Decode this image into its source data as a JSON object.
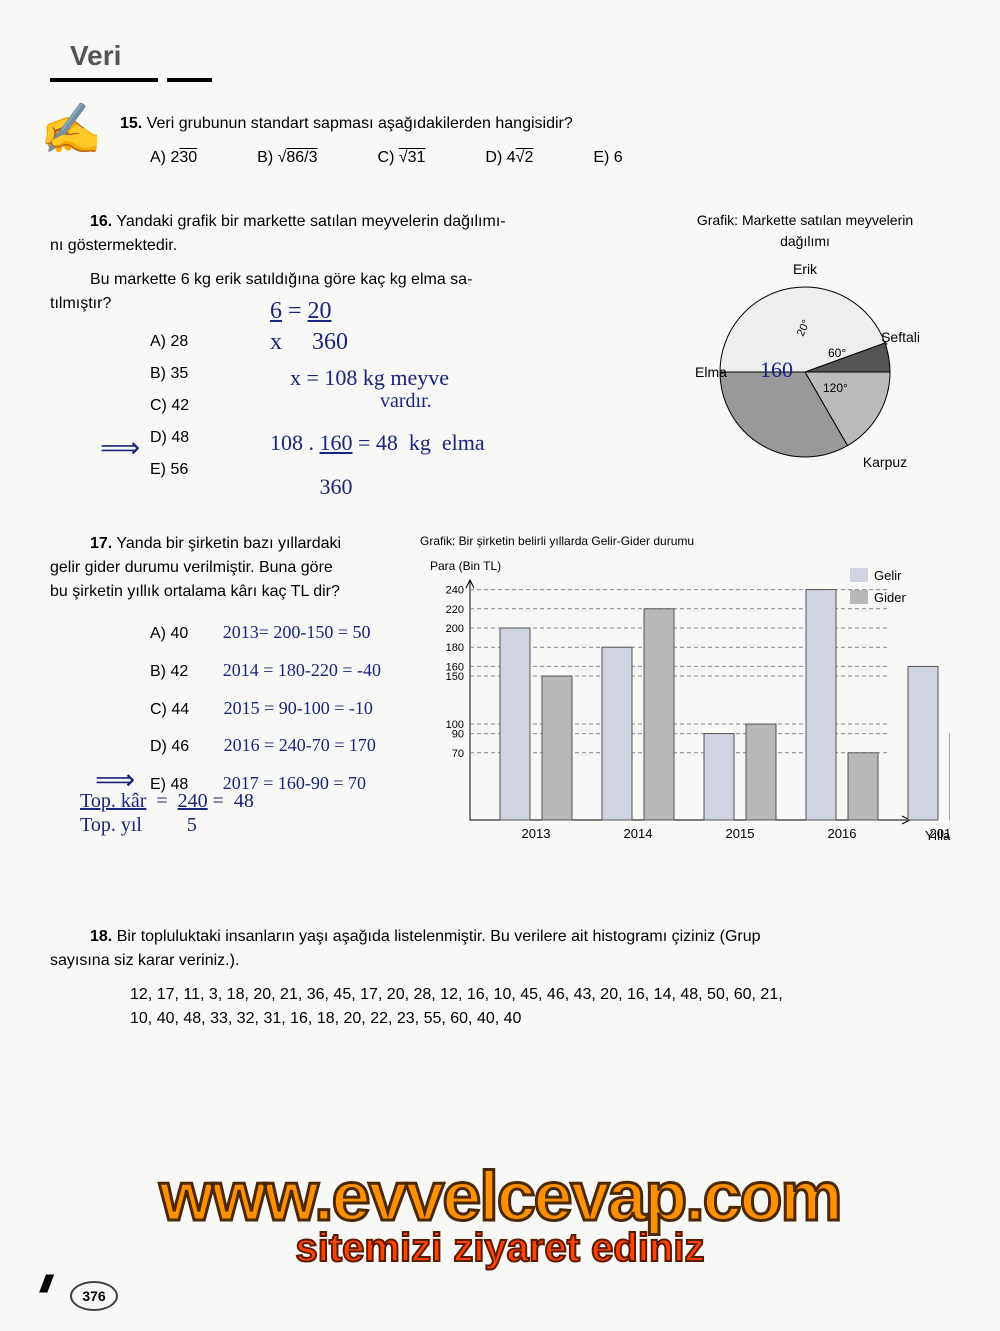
{
  "header": {
    "title": "Veri"
  },
  "q15": {
    "num": "15.",
    "text": "Veri grubunun standart sapması aşağıdakilerden hangisidir?",
    "opts": {
      "a": "A) 2√30",
      "b": "B) √(86/3)",
      "c": "C) √31",
      "d": "D) 4√2",
      "e": "E) 6"
    }
  },
  "q16": {
    "num": "16.",
    "text1": "Yandaki grafik bir markette satılan meyvelerin dağılımı-",
    "text2": "nı göstermektedir.",
    "text3": "Bu markette 6 kg erik satıldığına göre kaç kg elma sa-",
    "text4": "tılmıştır?",
    "opts": {
      "a": "A) 28",
      "b": "B) 35",
      "c": "C) 42",
      "d": "D) 48",
      "e": "E) 56"
    },
    "chart": {
      "title": "Grafik: Markette satılan meyvelerin",
      "subtitle": "dağılımı",
      "labels": {
        "erik": "Erik",
        "seftali": "Şeftali",
        "karpuz": "Karpuz",
        "elma": "Elma"
      },
      "angles": {
        "a60": "60°",
        "a120": "120°",
        "a20": "20°"
      },
      "slices": [
        {
          "name": "erik",
          "start": 70,
          "end": 90,
          "fill": "#555"
        },
        {
          "name": "seftali",
          "start": 90,
          "end": 150,
          "fill": "#bbb"
        },
        {
          "name": "karpuz",
          "start": 150,
          "end": 270,
          "fill": "#999"
        },
        {
          "name": "elma",
          "start": 270,
          "end": 430,
          "fill": "#eee"
        }
      ]
    },
    "hw": {
      "eq1": "6/x = 20/360",
      "eq2": "x = 108  kg meyve",
      "eq3": "vardır.",
      "eq4": "108 . 160/360 = 48  kg  elma",
      "mark160": "160"
    }
  },
  "q17": {
    "num": "17.",
    "text1": "Yanda bir şirketin bazı yıllardaki",
    "text2": "gelir gider durumu verilmiştir. Buna göre",
    "text3": "bu şirketin yıllık ortalama kârı kaç TL dir?",
    "opts": {
      "a": "A) 40",
      "b": "B) 42",
      "c": "C) 44",
      "d": "D) 46",
      "e": "E) 48"
    },
    "hw": {
      "l1": "2013= 200-150 = 50",
      "l2": "2014 = 180-220 = -40",
      "l3": "2015 =  90-100 = -10",
      "l4": "2016 = 240-70 = 170",
      "l5": "2017 = 160-90 = 70",
      "sum": "Top. kâr / Top. yıl  =  240/5 = 48"
    },
    "chart": {
      "title": "Grafik: Bir şirketin belirli yıllarda Gelir-Gider durumu",
      "ylabel": "Para (Bin TL)",
      "xlabel": "Yıllar",
      "legend": {
        "gelir": "Gelir",
        "gider": "Gider"
      },
      "colors": {
        "gelir": "#cfd4e0",
        "gider": "#b8b8b8"
      },
      "yticks": [
        70,
        90,
        100,
        150,
        160,
        180,
        200,
        220,
        240
      ],
      "years": [
        "2013",
        "2014",
        "2015",
        "2016",
        "2017"
      ],
      "gelir": [
        200,
        180,
        90,
        240,
        160
      ],
      "gider": [
        150,
        220,
        100,
        70,
        90
      ]
    }
  },
  "q18": {
    "num": "18.",
    "text1": "Bir topluluktaki insanların yaşı aşağıda listelenmiştir. Bu verilere ait histogramı çiziniz (Grup",
    "text2": "sayısına siz karar veriniz.).",
    "data1": "12, 17, 11, 3, 18, 20, 21, 36, 45, 17, 20, 28, 12, 16, 10, 45, 46, 43, 20, 16, 14, 48, 50, 60, 21,",
    "data2": "10, 40, 48, 33, 32, 31, 16, 18, 20, 22, 23, 55, 60, 40, 40"
  },
  "watermark": {
    "main": "www.evvelcevap.com",
    "sub": "sitemizi ziyaret ediniz"
  },
  "pagenum": "376"
}
